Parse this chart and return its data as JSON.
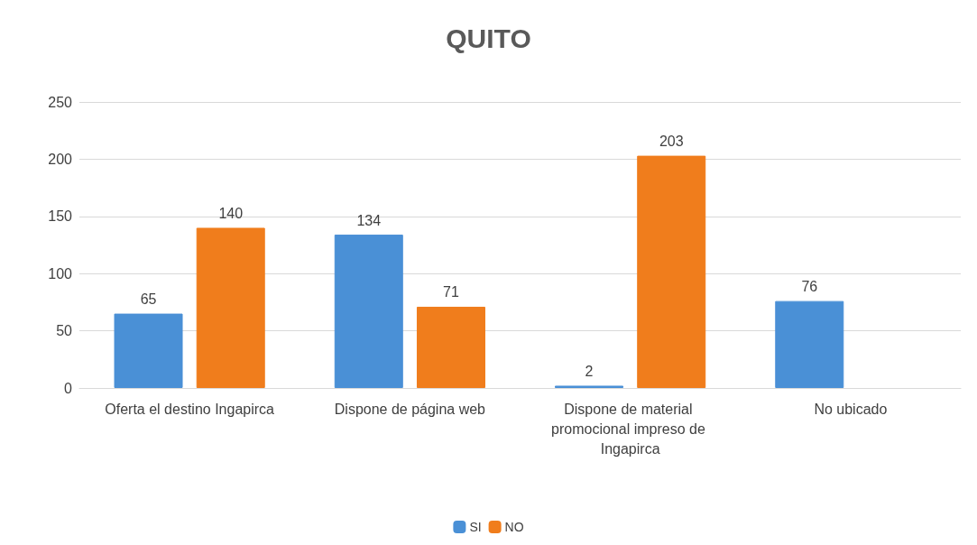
{
  "chart_data": {
    "type": "bar",
    "title": "QUITO",
    "categories": [
      "Oferta el destino Ingapirca",
      "Dispone de página web",
      "Dispone de material promocional impreso de Ingapirca",
      "No ubicado"
    ],
    "series": [
      {
        "name": "SI",
        "color": "#4a90d6",
        "values": [
          65,
          134,
          2,
          76
        ]
      },
      {
        "name": "NO",
        "color": "#f07d1c",
        "values": [
          140,
          71,
          203,
          null
        ]
      }
    ],
    "ylim": [
      0,
      250
    ],
    "yticks": [
      0,
      50,
      100,
      150,
      200,
      250
    ],
    "grid": "y",
    "legend": "bottom",
    "data_labels": true
  }
}
